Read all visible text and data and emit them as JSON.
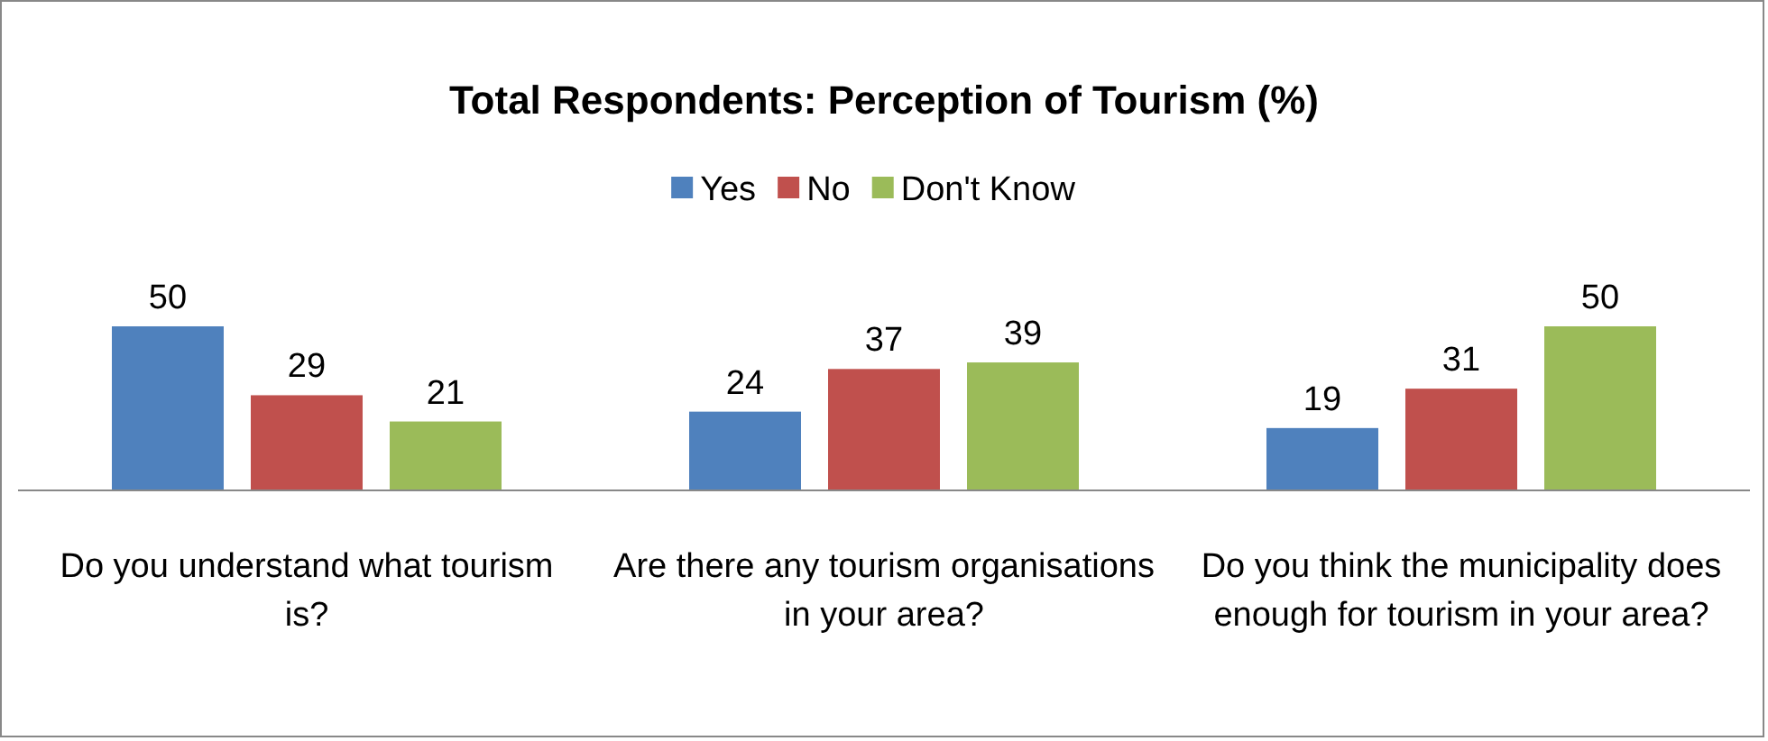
{
  "chart_data": {
    "type": "bar",
    "title": "Total Respondents: Perception of Tourism (%)",
    "categories": [
      "Do you understand what tourism is?",
      "Are there any tourism organisations in your area?",
      "Do you think the municipality does enough for tourism in your area?"
    ],
    "series": [
      {
        "name": "Yes",
        "color": "#4f81bd",
        "values": [
          50,
          24,
          19
        ]
      },
      {
        "name": "No",
        "color": "#c0504d",
        "values": [
          29,
          37,
          31
        ]
      },
      {
        "name": "Don't Know",
        "color": "#9bbb59",
        "values": [
          21,
          39,
          50
        ]
      }
    ],
    "data_labels": true,
    "legend": "top",
    "grid": false
  }
}
